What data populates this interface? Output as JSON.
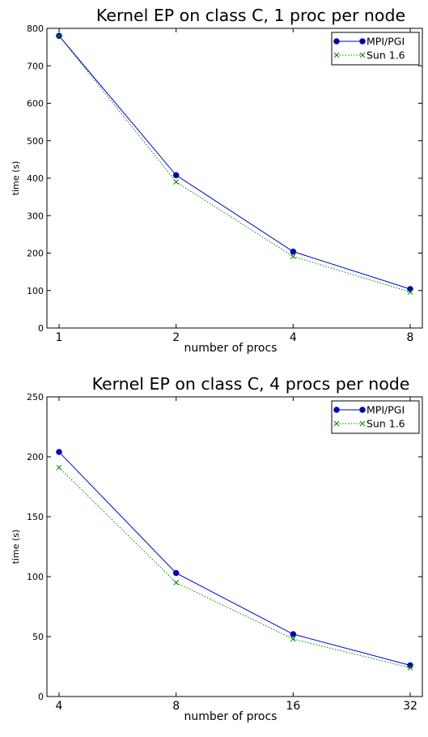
{
  "chart_data": [
    {
      "type": "line",
      "title": "Kernel EP on class C, 1 proc per node",
      "xlabel": "number of procs",
      "ylabel": "time (s)",
      "x_scale": "log2",
      "categories": [
        "1",
        "2",
        "4",
        "8"
      ],
      "x": [
        1,
        2,
        4,
        8
      ],
      "ylim": [
        0,
        800
      ],
      "yticks": [
        0,
        100,
        200,
        300,
        400,
        500,
        600,
        700,
        800
      ],
      "grid": false,
      "legend": "top-right",
      "series": [
        {
          "name": "MPI/PGI",
          "values": [
            780,
            408,
            204,
            104
          ],
          "color": "#0000cc",
          "marker": "circle",
          "linestyle": "solid"
        },
        {
          "name": "Sun 1.6",
          "values": [
            780,
            390,
            191,
            96
          ],
          "color": "#008000",
          "marker": "x",
          "linestyle": "dotted"
        }
      ]
    },
    {
      "type": "line",
      "title": "Kernel EP on class C, 4 procs per node",
      "xlabel": "number of procs",
      "ylabel": "time (s)",
      "x_scale": "log2",
      "categories": [
        "4",
        "8",
        "16",
        "32"
      ],
      "x": [
        4,
        8,
        16,
        32
      ],
      "ylim": [
        0,
        250
      ],
      "yticks": [
        0,
        50,
        100,
        150,
        200,
        250
      ],
      "grid": false,
      "legend": "top-right",
      "series": [
        {
          "name": "MPI/PGI",
          "values": [
            204,
            103,
            52,
            26
          ],
          "color": "#0000cc",
          "marker": "circle",
          "linestyle": "solid"
        },
        {
          "name": "Sun 1.6",
          "values": [
            191,
            95,
            48,
            24
          ],
          "color": "#008000",
          "marker": "x",
          "linestyle": "dotted"
        }
      ]
    }
  ]
}
